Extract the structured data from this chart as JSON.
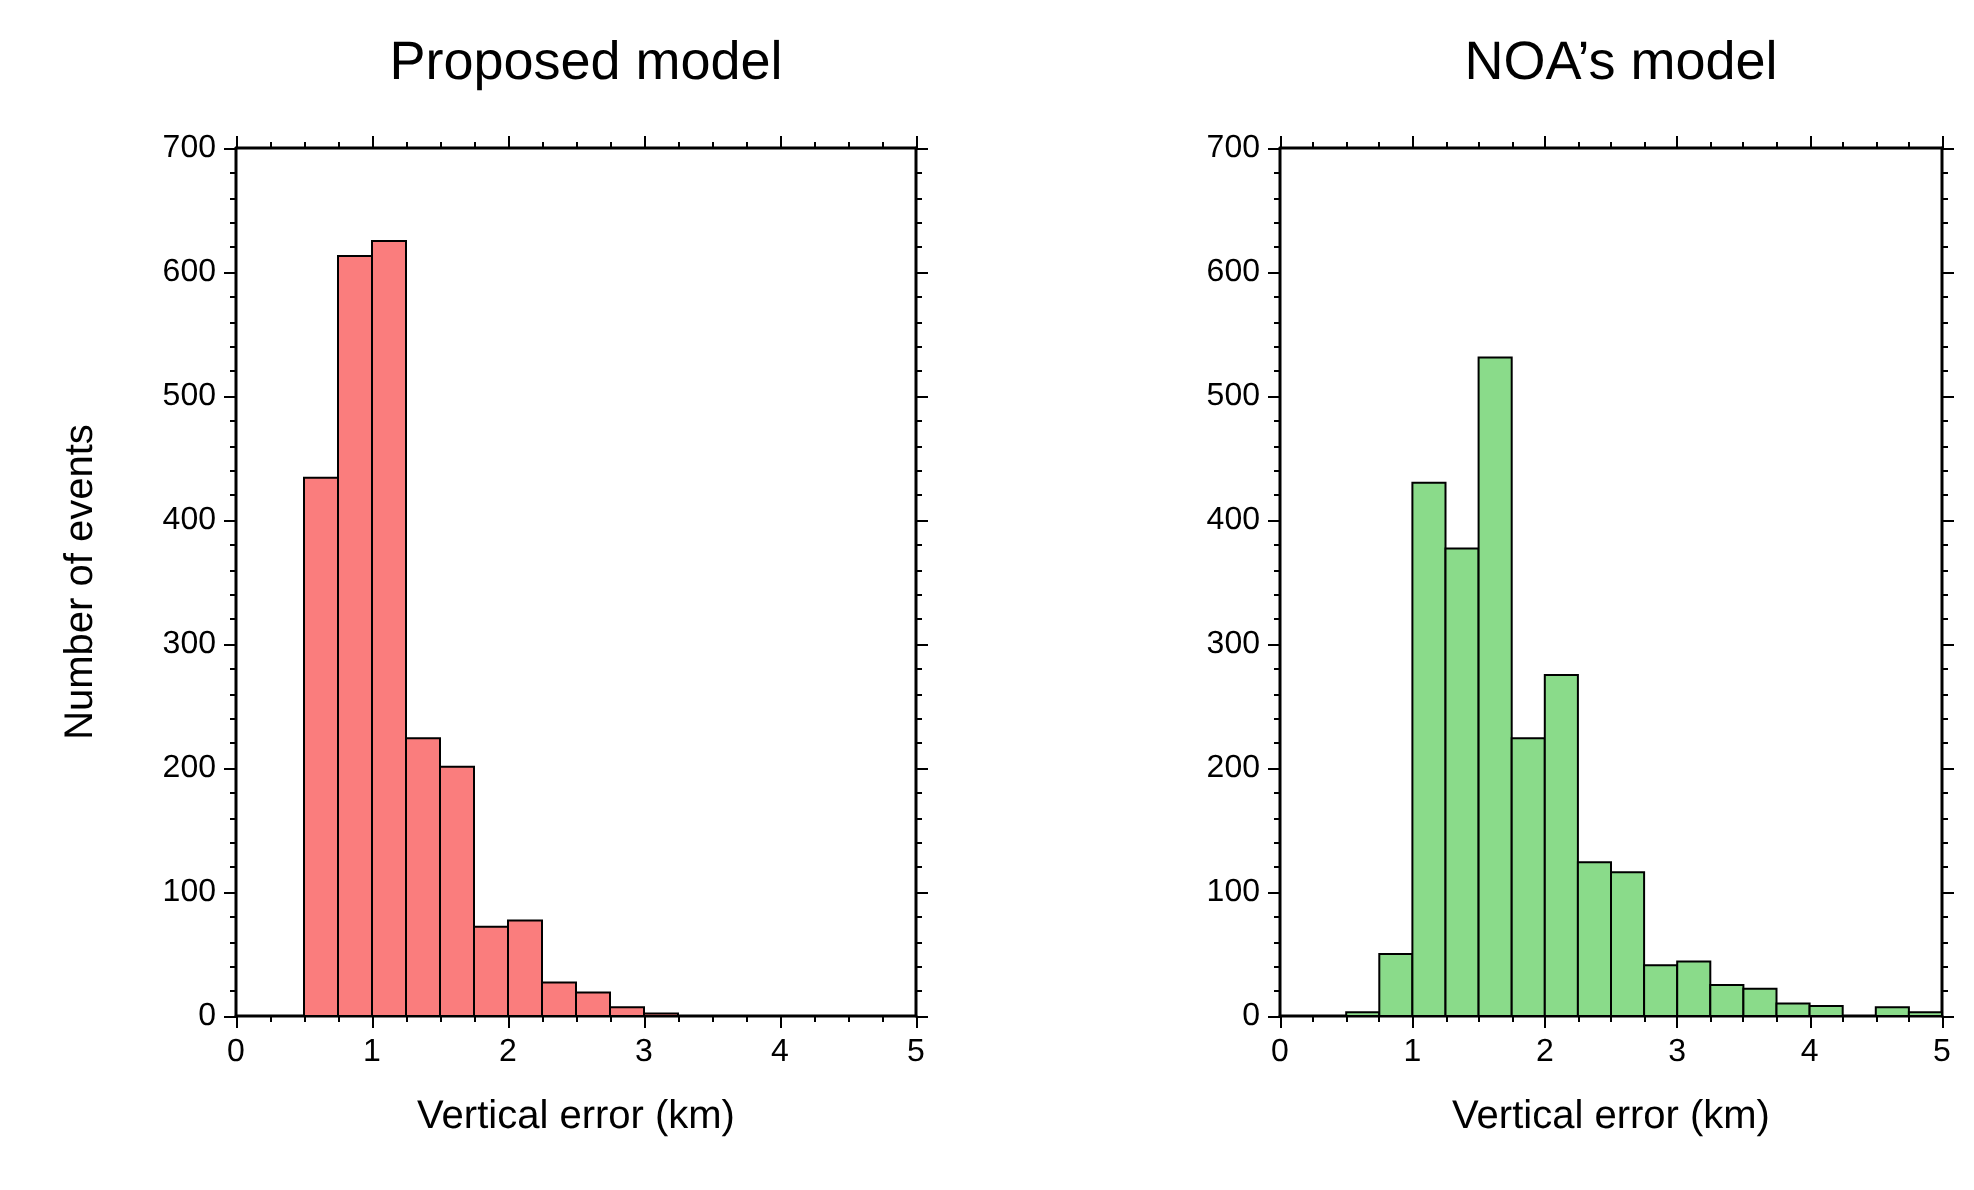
{
  "chart_data": [
    {
      "type": "histogram",
      "title": "Proposed model",
      "xlabel": "Vertical error (km)",
      "ylabel": "Number of events",
      "color": "#fa7d7d",
      "bins": [
        0.5,
        0.75,
        1.0,
        1.25,
        1.5,
        1.75,
        2.0,
        2.25,
        2.5,
        2.75,
        3.0,
        3.25
      ],
      "values": [
        434,
        613,
        625,
        224,
        201,
        72,
        77,
        27,
        19,
        7,
        2
      ],
      "xlim": [
        0,
        5
      ],
      "xticks": [
        0,
        1,
        2,
        3,
        4,
        5
      ],
      "ylim": [
        0,
        700
      ],
      "yticks": [
        0,
        100,
        200,
        300,
        400,
        500,
        600,
        700
      ],
      "grid": false
    },
    {
      "type": "histogram",
      "title": "NOA’s model",
      "xlabel": "Vertical error (km)",
      "color": "#8adb8a",
      "bins": [
        0.5,
        0.75,
        1.0,
        1.25,
        1.5,
        1.75,
        2.0,
        2.25,
        2.5,
        2.75,
        3.0,
        3.25,
        3.5,
        3.75,
        4.0,
        4.25,
        4.5,
        4.75,
        5.0
      ],
      "values": [
        3,
        50,
        430,
        377,
        531,
        224,
        275,
        124,
        116,
        41,
        44,
        25,
        22,
        10,
        8,
        0,
        7,
        3
      ],
      "xlim": [
        0,
        5
      ],
      "xticks": [
        0,
        1,
        2,
        3,
        4,
        5
      ],
      "ylim": [
        0,
        700
      ],
      "yticks": [
        0,
        100,
        200,
        300,
        400,
        500,
        600,
        700
      ],
      "grid": false
    }
  ]
}
